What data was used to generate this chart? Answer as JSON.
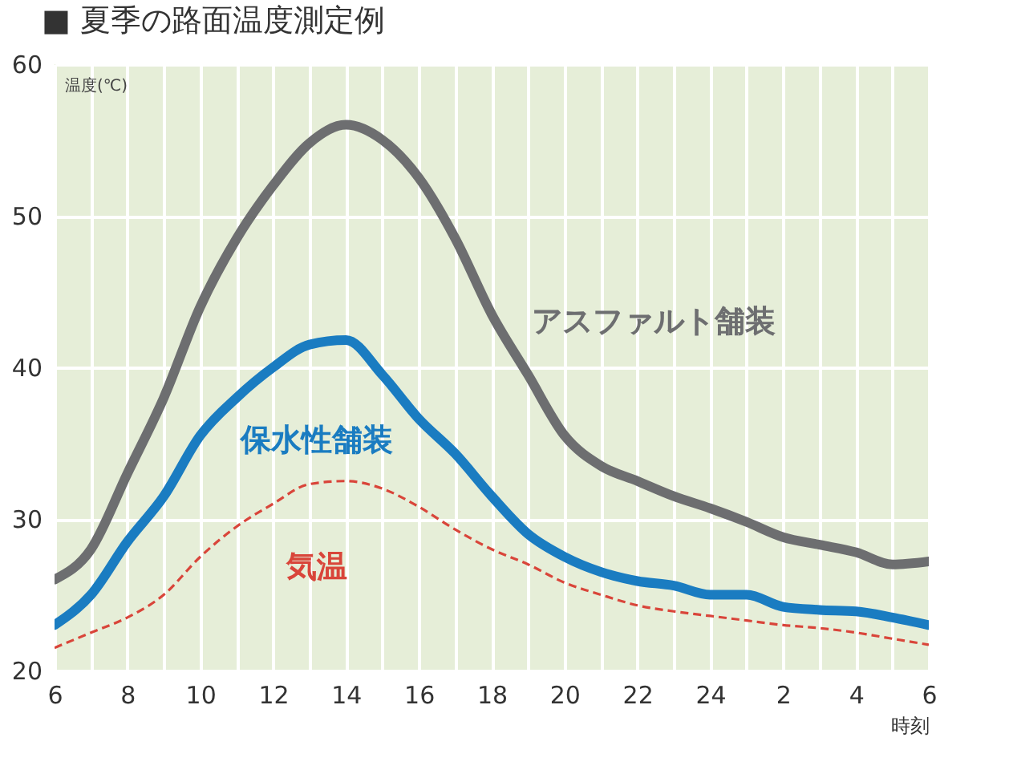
{
  "chart_data": {
    "type": "line",
    "title": "■ 夏季の路面温度測定例",
    "ylabel": "温度(℃)",
    "xlabel": "時刻",
    "categories": [
      "6",
      null,
      "8",
      null,
      "10",
      null,
      "12",
      null,
      "14",
      null,
      "16",
      null,
      "18",
      null,
      "20",
      null,
      "22",
      null,
      "24",
      null,
      "2",
      null,
      "4",
      null,
      "6"
    ],
    "series": [
      {
        "name": "アスファルト舗装",
        "color": "#6d6e70",
        "line_style": "solid",
        "values": [
          26,
          28,
          33,
          38,
          44,
          48.5,
          52,
          54.8,
          56,
          55,
          52.5,
          48.5,
          43.5,
          39.5,
          35.5,
          33.5,
          32.5,
          31.5,
          30.7,
          29.8,
          28.8,
          28.3,
          27.8,
          27,
          27.2
        ]
      },
      {
        "name": "保水性舗装",
        "color": "#1a7cc1",
        "line_style": "solid",
        "values": [
          23,
          25,
          28.5,
          31.5,
          35.5,
          38,
          40,
          41.5,
          41.8,
          39.5,
          36.6,
          34.3,
          31.5,
          29,
          27.5,
          26.5,
          25.9,
          25.6,
          25,
          25,
          24.2,
          24,
          23.9,
          23.5,
          23
        ]
      },
      {
        "name": "気温",
        "color": "#d9453a",
        "line_style": "dashed",
        "values": [
          21.5,
          22.5,
          23.5,
          25,
          27.5,
          29.5,
          31,
          32.3,
          32.5,
          32,
          30.8,
          29.3,
          28,
          27,
          25.8,
          25,
          24.3,
          23.9,
          23.6,
          23.3,
          23,
          22.8,
          22.5,
          22.1,
          21.7
        ]
      }
    ],
    "ylim": [
      20,
      60
    ],
    "yticks": [
      20,
      30,
      40,
      50,
      60
    ],
    "grid": true,
    "legend": false
  }
}
